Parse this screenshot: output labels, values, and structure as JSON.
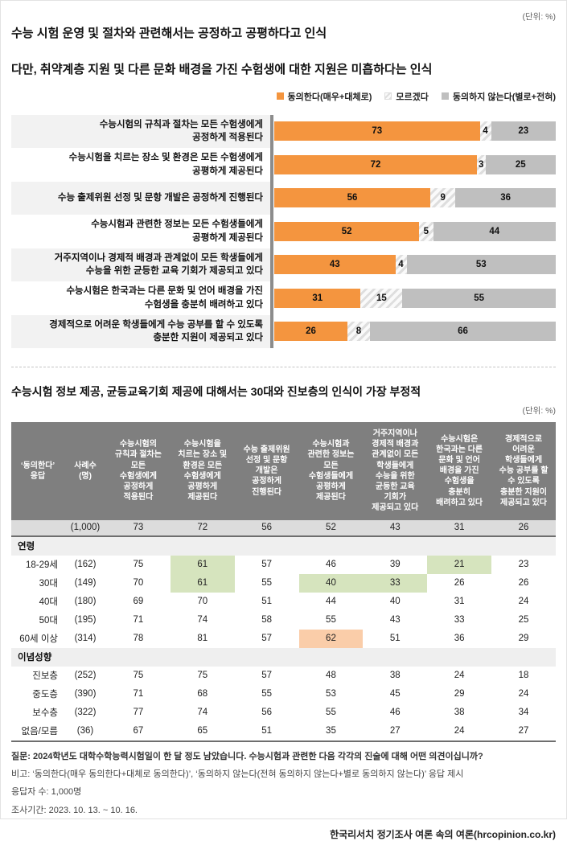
{
  "colors": {
    "agree": "#F4953F",
    "dontknow_stripe": "#DEDEDE",
    "disagree": "#BFBFBF",
    "highlight_green": "#D6E4BE",
    "highlight_orange": "#FACDA9",
    "table_header_bg": "#7F7F7F"
  },
  "section1": {
    "unit_label": "(단위: %)",
    "title_line1": "수능 시험 운영 및 절차와 관련해서는 공정하고 공평하다고 인식",
    "title_line2": "다만, 취약계층 지원 및 다른 문화 배경을 가진 수험생에 대한 지원은 미흡하다는 인식",
    "legend": [
      {
        "label": "동의한다(매우+대체로)",
        "style": "agree"
      },
      {
        "label": "모르겠다",
        "style": "hatch"
      },
      {
        "label": "동의하지 않는다(별로+전혀)",
        "style": "disagree"
      }
    ]
  },
  "chart_data": {
    "type": "bar",
    "orientation": "horizontal",
    "stacked": true,
    "unit": "%",
    "xlim": [
      0,
      100
    ],
    "series_names": [
      "동의한다(매우+대체로)",
      "모르겠다",
      "동의하지 않는다(별로+전혀)"
    ],
    "rows": [
      {
        "label": "수능시험의 규칙과 절차는 모든 수험생에게\n공정하게 적용된다",
        "values": [
          73,
          4,
          23
        ]
      },
      {
        "label": "수능시험을 치르는 장소 및 환경은 모든 수험생에게\n공평하게 제공된다",
        "values": [
          72,
          3,
          25
        ]
      },
      {
        "label": "수능 출제위원 선정 및 문항 개발은 공정하게 진행된다",
        "values": [
          56,
          9,
          36
        ]
      },
      {
        "label": "수능시험과 관련한 정보는 모든 수험생들에게\n공평하게 제공된다",
        "values": [
          52,
          5,
          44
        ]
      },
      {
        "label": "거주지역이나 경제적 배경과 관계없이 모든 학생들에게\n수능을 위한 균등한 교육 기회가 제공되고 있다",
        "values": [
          43,
          4,
          53
        ]
      },
      {
        "label": "수능시험은 한국과는 다른 문화 및 언어 배경을 가진\n수험생을 충분히 배려하고 있다",
        "values": [
          31,
          15,
          55
        ]
      },
      {
        "label": "경제적으로 어려운 학생들에게 수능 공부를 할 수 있도록\n충분한 지원이 제공되고 있다",
        "values": [
          26,
          8,
          66
        ]
      }
    ]
  },
  "section2": {
    "title": "수능시험 정보 제공, 균등교육기회 제공에 대해서는 30대와 진보층의 인식이 가장 부정적",
    "unit_label": "(단위: %)",
    "table": {
      "col_headers": [
        "‘동의한다’\n응답",
        "사례수\n(명)",
        "수능시험의\n규칙과 절차는\n모든\n수험생에게\n공정하게\n적용된다",
        "수능시험을\n치르는 장소 및\n환경은 모든\n수험생에게\n공평하게\n제공된다",
        "수능 출제위원\n선정 및 문항\n개발은\n공정하게\n진행된다",
        "수능시험과\n관련한 정보는\n모든\n수험생들에게\n공평하게\n제공된다",
        "거주지역이나\n경제적 배경과\n관계없이 모든\n학생들에게\n수능을 위한\n균등한 교육\n기회가\n제공되고 있다",
        "수능시험은\n한국과는 다른\n문화 및 언어\n배경을 가진\n수험생을\n충분히\n배려하고 있다",
        "경제적으로\n어려운\n학생들에게\n수능 공부를 할\n수 있도록\n충분한 지원이\n제공되고 있다"
      ],
      "summary_row": {
        "label": "",
        "n": "(1,000)",
        "values": [
          73,
          72,
          56,
          52,
          43,
          31,
          26
        ]
      },
      "groups": [
        {
          "name": "연령",
          "rows": [
            {
              "label": "18-29세",
              "n": "(162)",
              "values": [
                75,
                61,
                57,
                46,
                39,
                21,
                23
              ],
              "highlights": {
                "1": "green",
                "5": "green"
              }
            },
            {
              "label": "30대",
              "n": "(149)",
              "values": [
                70,
                61,
                55,
                40,
                33,
                26,
                26
              ],
              "highlights": {
                "1": "green",
                "3": "green",
                "4": "green"
              }
            },
            {
              "label": "40대",
              "n": "(180)",
              "values": [
                69,
                70,
                51,
                44,
                40,
                31,
                24
              ],
              "highlights": {}
            },
            {
              "label": "50대",
              "n": "(195)",
              "values": [
                71,
                74,
                58,
                55,
                43,
                33,
                25
              ],
              "highlights": {}
            },
            {
              "label": "60세 이상",
              "n": "(314)",
              "values": [
                78,
                81,
                57,
                62,
                51,
                36,
                29
              ],
              "highlights": {
                "3": "orange"
              }
            }
          ]
        },
        {
          "name": "이념성향",
          "rows": [
            {
              "label": "진보층",
              "n": "(252)",
              "values": [
                75,
                75,
                57,
                48,
                38,
                24,
                18
              ],
              "highlights": {}
            },
            {
              "label": "중도층",
              "n": "(390)",
              "values": [
                71,
                68,
                55,
                53,
                45,
                29,
                24
              ],
              "highlights": {}
            },
            {
              "label": "보수층",
              "n": "(322)",
              "values": [
                77,
                74,
                56,
                55,
                46,
                38,
                34
              ],
              "highlights": {}
            },
            {
              "label": "없음/모름",
              "n": "(36)",
              "values": [
                67,
                65,
                51,
                35,
                27,
                24,
                27
              ],
              "highlights": {}
            }
          ]
        }
      ]
    }
  },
  "footer": {
    "question": "질문: 2024학년도 대학수학능력시험일이 한 달 정도 남았습니다. 수능시험과 관련한 다음 각각의 진술에 대해 어떤 의견이십니까?",
    "note": "비고: ‘동의한다(매우 동의한다+대체로 동의한다)’, ‘동의하지 않는다(전혀 동의하지 않는다+별로 동의하지 않는다)’ 응답 제시",
    "respondents": "응답자 수: 1,000명",
    "period": "조사기간: 2023. 10. 13. ~ 10. 16.",
    "source": "한국리서치 정기조사 여론 속의 여론(hrcopinion.co.kr)"
  }
}
